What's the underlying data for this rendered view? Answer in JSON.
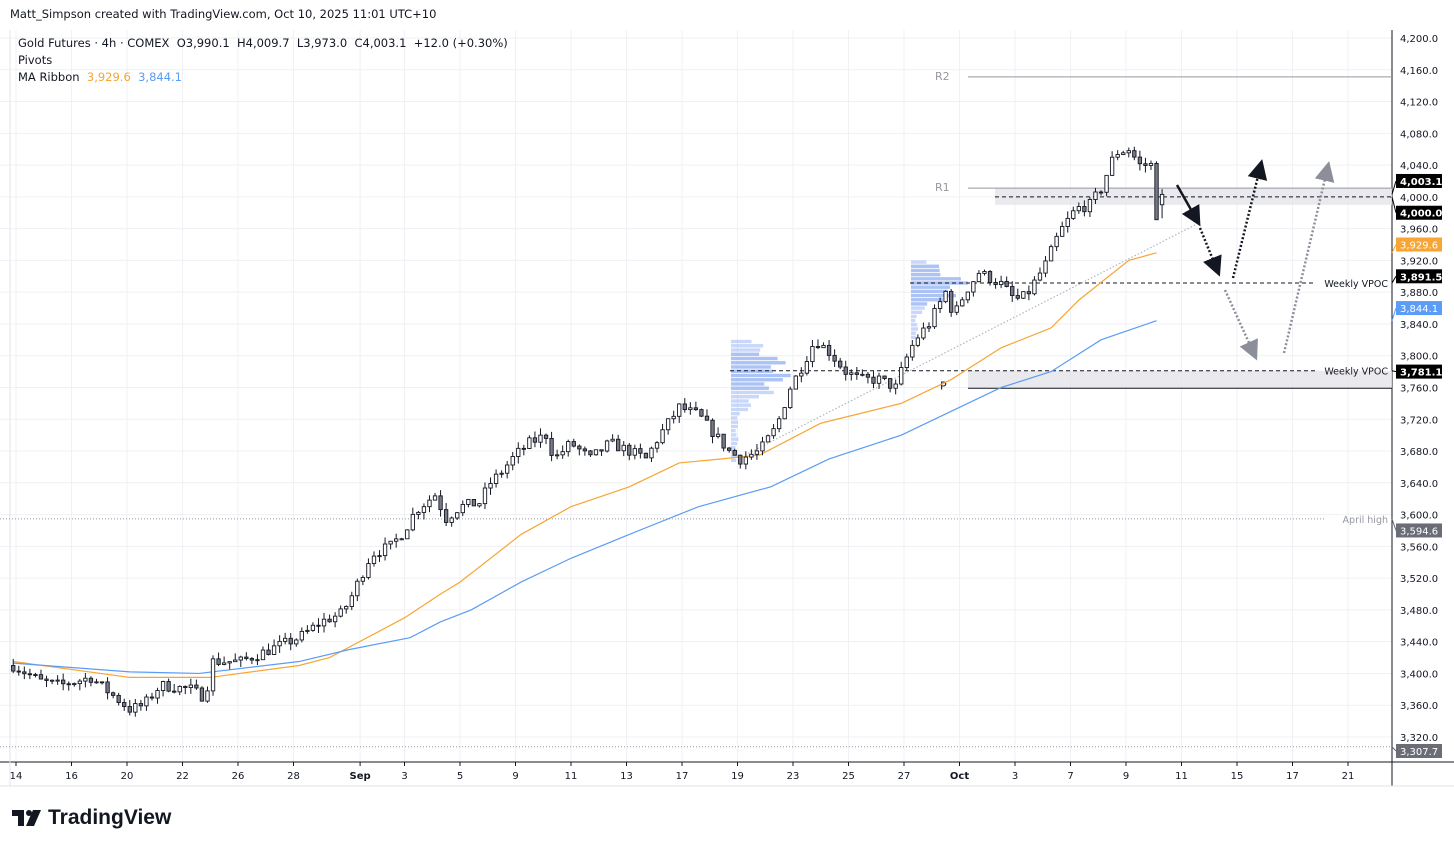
{
  "credit": "Matt_Simpson created with TradingView.com, Oct 10, 2025 11:01 UTC+10",
  "legend": {
    "symbol": "Gold Futures · 4h · COMEX",
    "open": "O3,990.1",
    "high": "H4,009.7",
    "low": "L3,973.0",
    "close": "C4,003.1",
    "change": "+12.0 (+0.30%)",
    "pivots": "Pivots",
    "ma_label": "MA Ribbon",
    "ma_fast": "3,929.6",
    "ma_slow": "3,844.1"
  },
  "logo": {
    "text": "TradingView"
  },
  "colors": {
    "ma_fast": "#f7a534",
    "ma_slow": "#5b9cf6",
    "profile": "#9db8f5",
    "zone": "#e3e4ea"
  },
  "chart_data": {
    "type": "candlestick",
    "title": "Gold Futures · 4h · COMEX",
    "ylim": [
      3300,
      4210
    ],
    "y_ticks": [
      4200,
      4160,
      4120,
      4080,
      4040,
      4000,
      3960,
      3920,
      3880,
      3840,
      3800,
      3760,
      3720,
      3680,
      3640,
      3600,
      3560,
      3520,
      3480,
      3440,
      3400,
      3360,
      3320
    ],
    "x_ticks": [
      {
        "t": 0,
        "label": "14"
      },
      {
        "t": 2,
        "label": "16"
      },
      {
        "t": 4,
        "label": "20"
      },
      {
        "t": 6,
        "label": "22"
      },
      {
        "t": 8,
        "label": "26"
      },
      {
        "t": 10,
        "label": "28"
      },
      {
        "t": 12.4,
        "label": "Sep"
      },
      {
        "t": 14,
        "label": "3"
      },
      {
        "t": 16,
        "label": "5"
      },
      {
        "t": 18,
        "label": "9"
      },
      {
        "t": 20,
        "label": "11"
      },
      {
        "t": 22,
        "label": "13"
      },
      {
        "t": 24,
        "label": "17"
      },
      {
        "t": 26,
        "label": "19"
      },
      {
        "t": 28,
        "label": "23"
      },
      {
        "t": 30,
        "label": "25"
      },
      {
        "t": 32,
        "label": "27"
      },
      {
        "t": 34,
        "label": "Oct"
      },
      {
        "t": 36,
        "label": "3"
      },
      {
        "t": 38,
        "label": "7"
      },
      {
        "t": 40,
        "label": "9"
      },
      {
        "t": 42,
        "label": "11"
      },
      {
        "t": 44,
        "label": "15"
      },
      {
        "t": 46,
        "label": "17"
      },
      {
        "t": 48,
        "label": "21"
      }
    ],
    "price_path": [
      [
        -0.1,
        3410
      ],
      [
        0.9,
        3390
      ],
      [
        1.6,
        3385
      ],
      [
        2.7,
        3395
      ],
      [
        3.4,
        3375
      ],
      [
        4.1,
        3355
      ],
      [
        4.6,
        3360
      ],
      [
        5.2,
        3385
      ],
      [
        6.3,
        3380
      ],
      [
        6.8,
        3370
      ],
      [
        7.1,
        3415
      ],
      [
        8.1,
        3415
      ],
      [
        8.8,
        3425
      ],
      [
        9.5,
        3435
      ],
      [
        10.2,
        3445
      ],
      [
        11.0,
        3465
      ],
      [
        11.7,
        3475
      ],
      [
        12.0,
        3490
      ],
      [
        12.4,
        3520
      ],
      [
        12.8,
        3550
      ],
      [
        13.5,
        3560
      ],
      [
        14.0,
        3580
      ],
      [
        14.4,
        3605
      ],
      [
        15.1,
        3625
      ],
      [
        15.5,
        3595
      ],
      [
        16.0,
        3610
      ],
      [
        16.7,
        3615
      ],
      [
        17.1,
        3640
      ],
      [
        17.4,
        3650
      ],
      [
        18.0,
        3675
      ],
      [
        18.5,
        3690
      ],
      [
        19.1,
        3700
      ],
      [
        19.4,
        3670
      ],
      [
        20.0,
        3690
      ],
      [
        20.7,
        3670
      ],
      [
        21.4,
        3690
      ],
      [
        22.1,
        3680
      ],
      [
        22.7,
        3670
      ],
      [
        23.2,
        3700
      ],
      [
        23.9,
        3735
      ],
      [
        24.6,
        3725
      ],
      [
        25.2,
        3700
      ],
      [
        25.7,
        3680
      ],
      [
        26.1,
        3670
      ],
      [
        26.8,
        3680
      ],
      [
        27.4,
        3710
      ],
      [
        27.9,
        3760
      ],
      [
        28.3,
        3785
      ],
      [
        28.8,
        3820
      ],
      [
        29.3,
        3805
      ],
      [
        29.9,
        3780
      ],
      [
        30.4,
        3770
      ],
      [
        31.1,
        3770
      ],
      [
        31.7,
        3760
      ],
      [
        32.0,
        3790
      ],
      [
        32.4,
        3820
      ],
      [
        32.9,
        3840
      ],
      [
        33.5,
        3880
      ],
      [
        33.8,
        3850
      ],
      [
        34.2,
        3880
      ],
      [
        34.7,
        3905
      ],
      [
        35.5,
        3890
      ],
      [
        36.0,
        3870
      ],
      [
        36.4,
        3875
      ],
      [
        37.1,
        3915
      ],
      [
        37.6,
        3955
      ],
      [
        38.2,
        3985
      ],
      [
        38.7,
        3990
      ],
      [
        39.1,
        4010
      ],
      [
        39.6,
        4055
      ],
      [
        40.1,
        4060
      ],
      [
        40.5,
        4040
      ],
      [
        40.9,
        4040
      ],
      [
        41.0,
        3990
      ],
      [
        41.2,
        3965
      ],
      [
        41.4,
        4003.1
      ]
    ],
    "series": [
      {
        "name": "MA fast",
        "last": 3929.6,
        "values": [
          [
            -0.1,
            3415
          ],
          [
            4.1,
            3395
          ],
          [
            7.0,
            3395
          ],
          [
            10.2,
            3410
          ],
          [
            11.3,
            3420
          ],
          [
            14.0,
            3470
          ],
          [
            15.3,
            3500
          ],
          [
            16.0,
            3515
          ],
          [
            18.2,
            3575
          ],
          [
            20.0,
            3610
          ],
          [
            22.1,
            3635
          ],
          [
            23.9,
            3665
          ],
          [
            25.4,
            3670
          ],
          [
            26.8,
            3675
          ],
          [
            29.0,
            3715
          ],
          [
            31.9,
            3740
          ],
          [
            33.7,
            3770
          ],
          [
            35.5,
            3810
          ],
          [
            37.3,
            3835
          ],
          [
            38.3,
            3870
          ],
          [
            40.1,
            3920
          ],
          [
            41.1,
            3929.6
          ]
        ]
      },
      {
        "name": "MA slow",
        "last": 3844.1,
        "values": [
          [
            -0.1,
            3413
          ],
          [
            4.1,
            3402
          ],
          [
            6.6,
            3400
          ],
          [
            10.2,
            3415
          ],
          [
            12.0,
            3430
          ],
          [
            14.2,
            3445
          ],
          [
            15.3,
            3465
          ],
          [
            16.4,
            3480
          ],
          [
            18.2,
            3515
          ],
          [
            20.0,
            3545
          ],
          [
            22.1,
            3575
          ],
          [
            24.6,
            3610
          ],
          [
            27.2,
            3635
          ],
          [
            29.3,
            3670
          ],
          [
            31.9,
            3700
          ],
          [
            33.7,
            3730
          ],
          [
            35.5,
            3760
          ],
          [
            37.3,
            3780
          ],
          [
            39.1,
            3820
          ],
          [
            41.1,
            3844.1
          ]
        ]
      }
    ],
    "levels": [
      {
        "label": "R2",
        "price": 4151
      },
      {
        "label": "R1",
        "price": 4011
      },
      {
        "label": "P",
        "price": 3759
      },
      {
        "label": "Weekly VPOC",
        "price": 3891.5
      },
      {
        "label": "Weekly VPOC",
        "price": 3781.1
      },
      {
        "label": "April high",
        "price": 3594.6
      }
    ],
    "price_badges": [
      {
        "text": "4,003.1",
        "price": 4003.1,
        "bg": "#000000"
      },
      {
        "text": "4,000.0",
        "price": 4000.0,
        "bg": "#000000"
      },
      {
        "text": "3,929.6",
        "price": 3929.6,
        "bg": "#f7a534"
      },
      {
        "text": "3,891.5",
        "price": 3891.5,
        "bg": "#000000"
      },
      {
        "text": "3,844.1",
        "price": 3844.1,
        "bg": "#5b9cf6"
      },
      {
        "text": "3,781.1",
        "price": 3781.1,
        "bg": "#000000"
      },
      {
        "text": "3,594.6",
        "price": 3594.6,
        "bg": "#6a6d78"
      },
      {
        "text": "3,307.7",
        "price": 3307.7,
        "bg": "#6a6d78"
      }
    ]
  }
}
